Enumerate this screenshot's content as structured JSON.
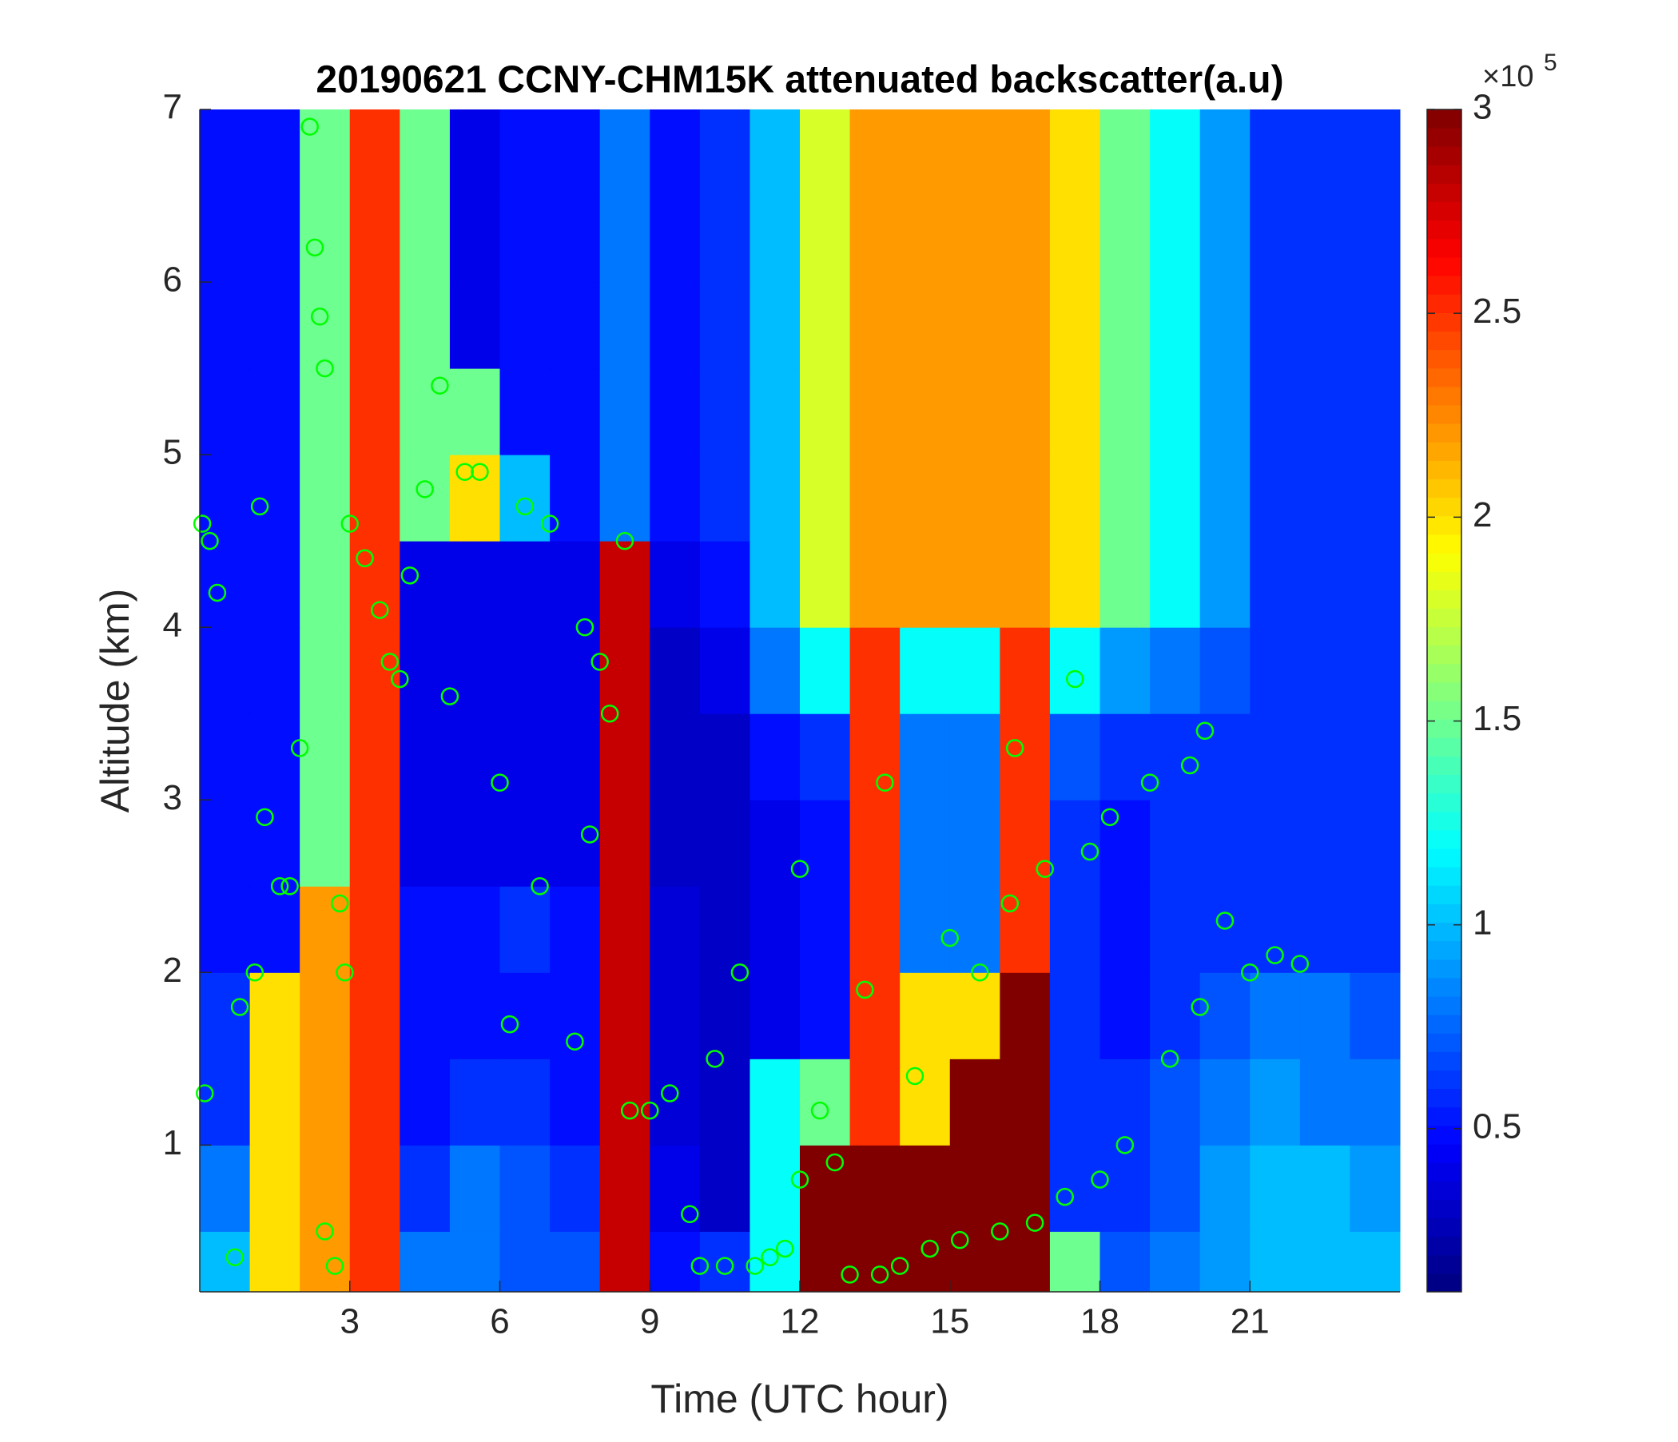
{
  "chart_data": {
    "type": "heatmap",
    "title": "20190621 CCNY-CHM15K attenuated backscatter(a.u)",
    "x_label": "Time (UTC hour)",
    "y_label": "Altitude (km)",
    "xlim": [
      0,
      24
    ],
    "ylim": [
      0.15,
      7
    ],
    "xticks": [
      3,
      6,
      9,
      12,
      15,
      18,
      21
    ],
    "yticks": [
      1,
      2,
      3,
      4,
      5,
      6,
      7
    ],
    "xbins": [
      0,
      1,
      2,
      3,
      4,
      5,
      6,
      7,
      8,
      9,
      10,
      11,
      12,
      13,
      14,
      15,
      16,
      17,
      18,
      19,
      20,
      21,
      22,
      23,
      24
    ],
    "ybins": [
      0.15,
      0.5,
      1,
      1.5,
      2,
      2.5,
      3,
      3.5,
      4,
      4.5,
      5,
      5.5,
      6,
      6.5,
      7
    ],
    "values": [
      [
        1.0,
        2.0,
        2.2,
        2.5,
        0.8,
        0.8,
        0.7,
        0.7,
        2.8,
        0.5,
        0.6,
        1.2,
        3,
        3,
        3,
        3,
        3,
        1.5,
        0.7,
        0.8,
        0.9,
        1.0,
        1.0,
        1.0
      ],
      [
        0.8,
        2.0,
        2.2,
        2.5,
        0.6,
        0.8,
        0.7,
        0.6,
        2.8,
        0.4,
        0.3,
        1.2,
        3,
        3,
        3,
        3,
        3,
        0.6,
        0.6,
        0.7,
        0.9,
        1.0,
        1.0,
        0.9
      ],
      [
        0.6,
        2.0,
        2.2,
        2.5,
        0.5,
        0.6,
        0.6,
        0.5,
        2.8,
        0.35,
        0.3,
        1.2,
        1.5,
        2.5,
        2.0,
        3,
        3,
        0.6,
        0.6,
        0.7,
        0.8,
        0.9,
        0.8,
        0.8
      ],
      [
        0.6,
        2.0,
        2.2,
        2.5,
        0.5,
        0.5,
        0.5,
        0.5,
        2.8,
        0.35,
        0.3,
        0.4,
        0.5,
        2.5,
        2.0,
        2.0,
        3,
        0.6,
        0.5,
        0.6,
        0.7,
        0.8,
        0.8,
        0.7
      ],
      [
        0.5,
        0.5,
        2.2,
        2.5,
        0.5,
        0.5,
        0.6,
        0.5,
        2.8,
        0.35,
        0.3,
        0.4,
        0.5,
        2.5,
        0.8,
        0.8,
        2.5,
        0.6,
        0.5,
        0.6,
        0.6,
        0.6,
        0.6,
        0.6
      ],
      [
        0.5,
        0.5,
        1.5,
        2.5,
        0.4,
        0.4,
        0.4,
        0.4,
        2.8,
        0.3,
        0.3,
        0.4,
        0.5,
        2.5,
        0.8,
        0.8,
        2.5,
        0.6,
        0.5,
        0.6,
        0.6,
        0.6,
        0.6,
        0.6
      ],
      [
        0.5,
        0.5,
        1.5,
        2.5,
        0.4,
        0.4,
        0.4,
        0.4,
        2.8,
        0.3,
        0.3,
        0.5,
        0.6,
        2.5,
        0.8,
        0.8,
        2.5,
        0.7,
        0.6,
        0.6,
        0.6,
        0.6,
        0.6,
        0.6
      ],
      [
        0.5,
        0.5,
        1.5,
        2.5,
        0.4,
        0.4,
        0.4,
        0.4,
        2.8,
        0.3,
        0.4,
        0.8,
        1.2,
        2.5,
        1.2,
        1.2,
        2.5,
        1.2,
        0.9,
        0.8,
        0.7,
        0.6,
        0.6,
        0.6
      ],
      [
        0.5,
        0.5,
        1.5,
        2.5,
        0.4,
        0.4,
        0.4,
        0.4,
        2.8,
        0.4,
        0.5,
        1.0,
        1.8,
        2.2,
        2.2,
        2.2,
        2.2,
        2.0,
        1.5,
        1.2,
        0.9,
        0.6,
        0.6,
        0.6
      ],
      [
        0.5,
        0.5,
        1.5,
        2.5,
        1.5,
        2.0,
        1.0,
        0.5,
        0.8,
        0.5,
        0.6,
        1.0,
        1.8,
        2.2,
        2.2,
        2.2,
        2.2,
        2.0,
        1.5,
        1.2,
        0.9,
        0.6,
        0.6,
        0.6
      ],
      [
        0.5,
        0.5,
        1.5,
        2.5,
        1.5,
        1.5,
        0.5,
        0.5,
        0.8,
        0.5,
        0.6,
        1.0,
        1.8,
        2.2,
        2.2,
        2.2,
        2.2,
        2.0,
        1.5,
        1.2,
        0.9,
        0.6,
        0.6,
        0.6
      ],
      [
        0.5,
        0.5,
        1.5,
        2.5,
        1.5,
        0.4,
        0.5,
        0.5,
        0.8,
        0.5,
        0.6,
        1.0,
        1.8,
        2.2,
        2.2,
        2.2,
        2.2,
        2.0,
        1.5,
        1.2,
        0.9,
        0.6,
        0.6,
        0.6
      ],
      [
        0.5,
        0.5,
        1.5,
        2.5,
        1.5,
        0.4,
        0.5,
        0.5,
        0.8,
        0.5,
        0.6,
        1.0,
        1.8,
        2.2,
        2.2,
        2.2,
        2.2,
        2.0,
        1.5,
        1.2,
        0.9,
        0.6,
        0.6,
        0.6
      ],
      [
        0.5,
        0.5,
        1.5,
        2.5,
        1.5,
        0.4,
        0.5,
        0.5,
        0.8,
        0.5,
        0.6,
        1.0,
        1.8,
        2.2,
        2.2,
        2.2,
        2.2,
        2.0,
        1.5,
        1.2,
        0.9,
        0.6,
        0.6,
        0.6
      ]
    ],
    "colormap": "jet",
    "clim": [
      0.1,
      3
    ],
    "cticks": [
      0.5,
      1,
      1.5,
      2,
      2.5,
      3
    ],
    "colorbar_multiplier": "×10",
    "colorbar_exponent": "5",
    "overlay": {
      "type": "scatter",
      "color": "#00ff00",
      "x": [
        0.05,
        0.2,
        0.35,
        0.1,
        0.7,
        0.8,
        1.1,
        1.3,
        1.2,
        1.6,
        1.8,
        2.0,
        2.2,
        2.3,
        2.4,
        2.5,
        2.5,
        2.7,
        2.8,
        2.9,
        3.0,
        3.3,
        3.6,
        3.8,
        4.0,
        4.2,
        4.5,
        4.8,
        5.0,
        5.3,
        5.6,
        6.0,
        6.2,
        6.5,
        6.8,
        7.0,
        7.5,
        7.8,
        7.7,
        8.0,
        8.2,
        8.5,
        8.6,
        9.0,
        9.4,
        9.8,
        10.0,
        10.3,
        10.5,
        10.8,
        11.1,
        11.4,
        11.7,
        12.0,
        12.0,
        12.4,
        12.7,
        13.0,
        13.3,
        13.6,
        13.7,
        14.0,
        14.3,
        14.6,
        15.0,
        15.2,
        15.6,
        16.0,
        16.2,
        16.3,
        16.7,
        16.9,
        17.3,
        17.5,
        17.8,
        18.0,
        18.2,
        18.5,
        19.0,
        19.4,
        19.8,
        20.0,
        20.1,
        20.5,
        21.0,
        21.5,
        22.0
      ],
      "y": [
        4.6,
        4.5,
        4.2,
        1.3,
        0.35,
        1.8,
        2.0,
        2.9,
        4.7,
        2.5,
        2.5,
        3.3,
        6.9,
        6.2,
        5.8,
        5.5,
        0.5,
        0.3,
        2.4,
        2.0,
        4.6,
        4.4,
        4.1,
        3.8,
        3.7,
        4.3,
        4.8,
        5.4,
        3.6,
        4.9,
        4.9,
        3.1,
        1.7,
        4.7,
        2.5,
        4.6,
        1.6,
        2.8,
        4.0,
        3.8,
        3.5,
        4.5,
        1.2,
        1.2,
        1.3,
        0.6,
        0.3,
        1.5,
        0.3,
        2.0,
        0.3,
        0.35,
        0.4,
        0.8,
        2.6,
        1.2,
        0.9,
        0.25,
        1.9,
        0.25,
        3.1,
        0.3,
        1.4,
        0.4,
        2.2,
        0.45,
        2.0,
        0.5,
        2.4,
        3.3,
        0.55,
        2.6,
        0.7,
        3.7,
        2.7,
        0.8,
        2.9,
        1.0,
        3.1,
        1.5,
        3.2,
        1.8,
        3.4,
        2.3,
        2.0,
        2.1,
        2.05
      ]
    }
  }
}
